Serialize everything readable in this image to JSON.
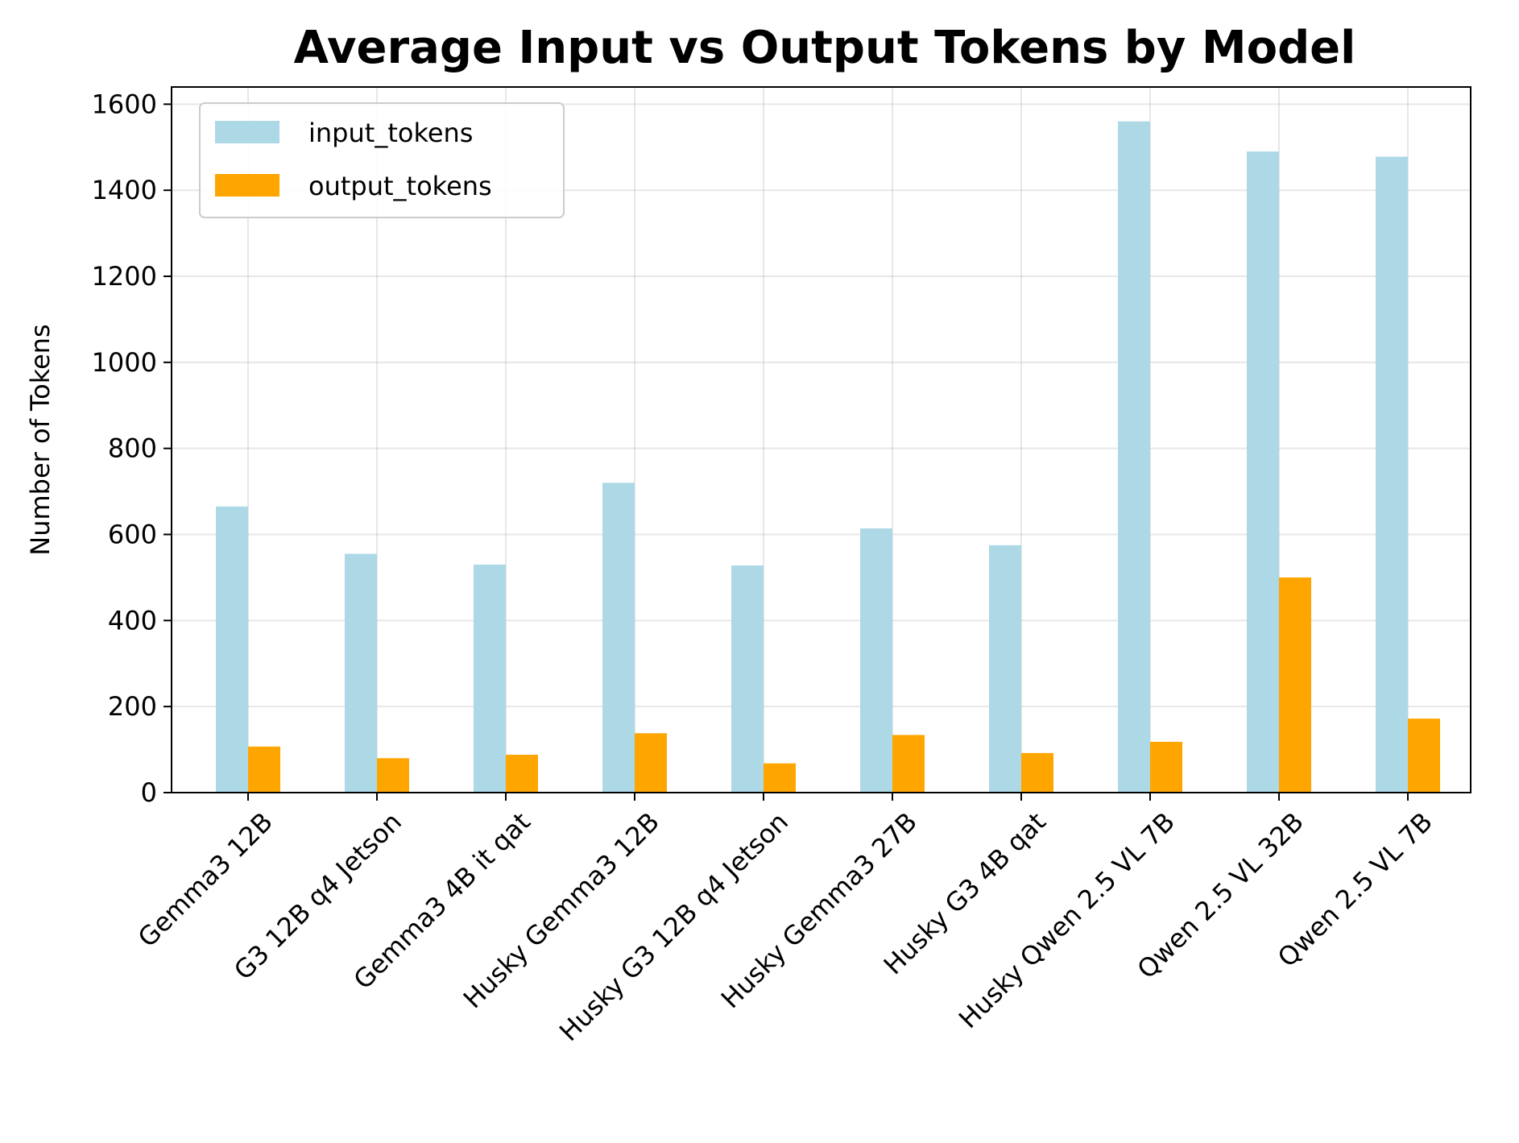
{
  "chart_data": {
    "type": "bar",
    "title": "Average Input vs Output Tokens by Model",
    "xlabel": "",
    "ylabel": "Number of Tokens",
    "ylim": [
      0,
      1640
    ],
    "yticks": [
      0,
      200,
      400,
      600,
      800,
      1000,
      1200,
      1400,
      1600
    ],
    "grid": true,
    "legend_position": "top-left",
    "categories": [
      "Gemma3 12B",
      "G3 12B q4 Jetson",
      "Gemma3 4B it qat",
      "Husky Gemma3 12B",
      "Husky G3 12B q4 Jetson",
      "Husky Gemma3 27B",
      "Husky G3 4B qat",
      "Husky Qwen 2.5 VL 7B",
      "Qwen 2.5 VL 32B",
      "Qwen 2.5 VL 7B"
    ],
    "series": [
      {
        "name": "input_tokens",
        "color": "#add8e6",
        "values": [
          665,
          555,
          530,
          720,
          528,
          614,
          575,
          1560,
          1490,
          1478
        ]
      },
      {
        "name": "output_tokens",
        "color": "#ffa500",
        "values": [
          107,
          80,
          88,
          138,
          68,
          134,
          92,
          118,
          500,
          172
        ]
      }
    ]
  }
}
